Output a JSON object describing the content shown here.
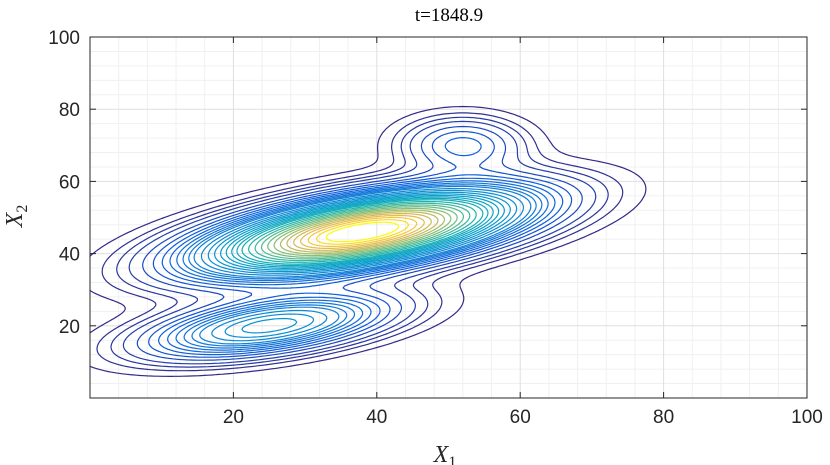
{
  "chart_data": {
    "type": "contour",
    "title": "t=1848.9",
    "xlabel": "X",
    "xlabel_subscript": "1",
    "ylabel": "X",
    "ylabel_subscript": "2",
    "xlim": [
      0,
      100
    ],
    "ylim": [
      0,
      100
    ],
    "xticks": [
      20,
      40,
      60,
      80,
      100
    ],
    "yticks": [
      20,
      40,
      60,
      80,
      100
    ],
    "grid": true,
    "minor_grid": true,
    "colormap": "parula",
    "components": [
      {
        "cx": 38.0,
        "cy": 46.0,
        "sx": 14.0,
        "sy": 5.5,
        "theta_deg": 20,
        "weight": 1.0
      },
      {
        "cx": 25.0,
        "cy": 20.0,
        "sx": 11.0,
        "sy": 4.5,
        "theta_deg": 18,
        "weight": 0.32
      },
      {
        "cx": 52.0,
        "cy": 70.0,
        "sx": 5.5,
        "sy": 5.0,
        "theta_deg": 0,
        "weight": 0.12
      }
    ],
    "levels": [
      0.012,
      0.024,
      0.036,
      0.05,
      0.07,
      0.09,
      0.11,
      0.13,
      0.15,
      0.17,
      0.19,
      0.21,
      0.24,
      0.27,
      0.3,
      0.33,
      0.36,
      0.39,
      0.42,
      0.45,
      0.49,
      0.53,
      0.57,
      0.61,
      0.65,
      0.69,
      0.73,
      0.77,
      0.81,
      0.85,
      0.89,
      0.93
    ],
    "colors": {
      "axis": "#262626",
      "grid": "#dfdfdf",
      "minor_grid": "#f0f0f0"
    }
  }
}
